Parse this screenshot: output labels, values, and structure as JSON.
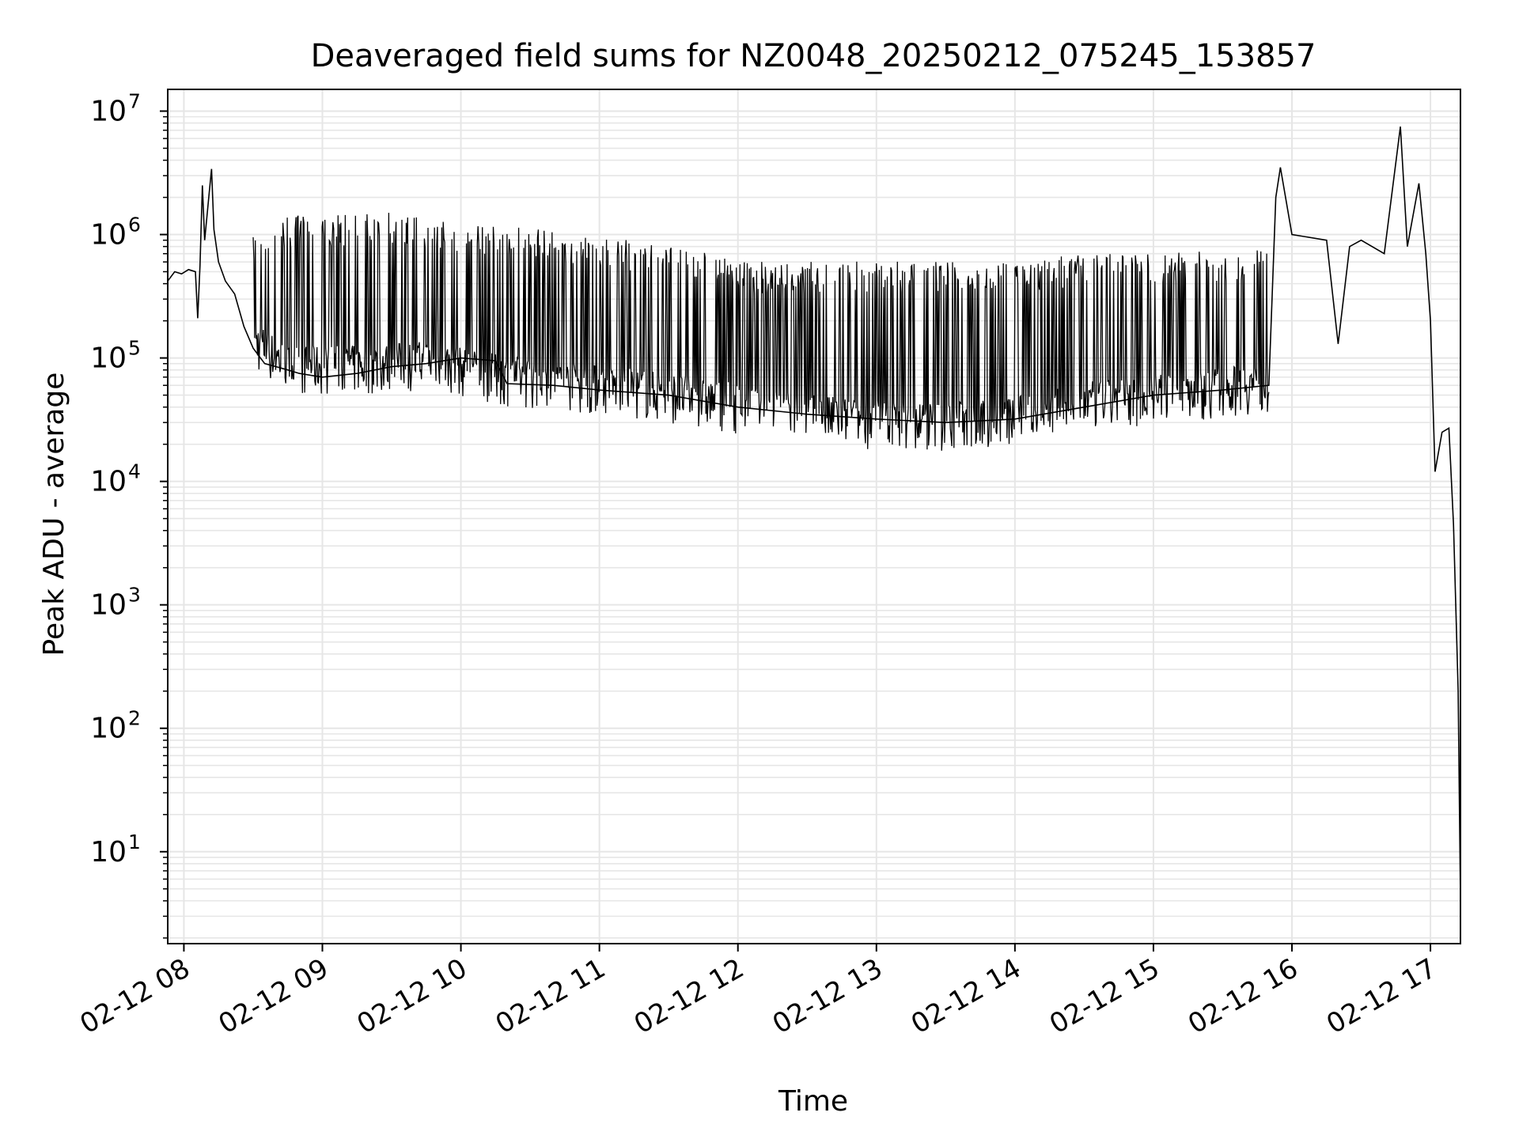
{
  "chart_data": {
    "type": "line",
    "title": "Deaveraged field sums for NZ0048_20250212_075245_153857",
    "xlabel": "Time",
    "ylabel": "Peak ADU - average",
    "yscale": "log",
    "grid": true,
    "line_color": "#000000",
    "grid_color": "#e6e6e6",
    "xlim": [
      "2025-02-12 07:53",
      "2025-02-12 17:13"
    ],
    "ylim": [
      1.8,
      15000000
    ],
    "x_ticks": [
      {
        "value": "2025-02-12 08:00",
        "label": "02-12 08"
      },
      {
        "value": "2025-02-12 09:00",
        "label": "02-12 09"
      },
      {
        "value": "2025-02-12 10:00",
        "label": "02-12 10"
      },
      {
        "value": "2025-02-12 11:00",
        "label": "02-12 11"
      },
      {
        "value": "2025-02-12 12:00",
        "label": "02-12 12"
      },
      {
        "value": "2025-02-12 13:00",
        "label": "02-12 13"
      },
      {
        "value": "2025-02-12 14:00",
        "label": "02-12 14"
      },
      {
        "value": "2025-02-12 15:00",
        "label": "02-12 15"
      },
      {
        "value": "2025-02-12 16:00",
        "label": "02-12 16"
      },
      {
        "value": "2025-02-12 17:00",
        "label": "02-12 17"
      }
    ],
    "y_ticks": [
      {
        "value": 10,
        "base": "10",
        "exp": "1"
      },
      {
        "value": 100,
        "base": "10",
        "exp": "2"
      },
      {
        "value": 1000,
        "base": "10",
        "exp": "3"
      },
      {
        "value": 10000,
        "base": "10",
        "exp": "4"
      },
      {
        "value": 100000,
        "base": "10",
        "exp": "5"
      },
      {
        "value": 1000000,
        "base": "10",
        "exp": "6"
      },
      {
        "value": 10000000,
        "base": "10",
        "exp": "7"
      }
    ],
    "envelope_note_free": true,
    "series": [
      {
        "points": [
          [
            "2025-02-12 07:53",
            420000
          ],
          [
            "2025-02-12 07:56",
            500000
          ],
          [
            "2025-02-12 07:59",
            480000
          ],
          [
            "2025-02-12 08:02",
            520000
          ],
          [
            "2025-02-12 08:05",
            500000
          ],
          [
            "2025-02-12 08:06",
            210000
          ],
          [
            "2025-02-12 08:07",
            560000
          ],
          [
            "2025-02-12 08:08",
            2500000
          ],
          [
            "2025-02-12 08:09",
            900000
          ],
          [
            "2025-02-12 08:11",
            2200000
          ],
          [
            "2025-02-12 08:12",
            3400000
          ],
          [
            "2025-02-12 08:13",
            1100000
          ],
          [
            "2025-02-12 08:15",
            600000
          ],
          [
            "2025-02-12 08:18",
            420000
          ],
          [
            "2025-02-12 08:22",
            330000
          ],
          [
            "2025-02-12 08:26",
            180000
          ],
          [
            "2025-02-12 08:30",
            120000
          ],
          [
            "2025-02-12 08:35",
            90000
          ],
          [
            "2025-02-12 08:40",
            85000
          ],
          [
            "2025-02-12 08:45",
            80000
          ],
          [
            "2025-02-12 08:50",
            75000
          ],
          [
            "2025-02-12 09:00",
            70000
          ],
          [
            "2025-02-12 09:15",
            75000
          ],
          [
            "2025-02-12 09:30",
            85000
          ],
          [
            "2025-02-12 09:45",
            90000
          ],
          [
            "2025-02-12 10:00",
            100000
          ],
          [
            "2025-02-12 10:15",
            95000
          ],
          [
            "2025-02-12 10:20",
            62000
          ],
          [
            "2025-02-12 10:40",
            60000
          ],
          [
            "2025-02-12 11:00",
            55000
          ],
          [
            "2025-02-12 11:30",
            50000
          ],
          [
            "2025-02-12 12:00",
            40000
          ],
          [
            "2025-02-12 12:30",
            35000
          ],
          [
            "2025-02-12 13:00",
            32000
          ],
          [
            "2025-02-12 13:30",
            30000
          ],
          [
            "2025-02-12 14:00",
            32000
          ],
          [
            "2025-02-12 14:30",
            40000
          ],
          [
            "2025-02-12 15:00",
            50000
          ],
          [
            "2025-02-12 15:30",
            55000
          ],
          [
            "2025-02-12 15:50",
            60000
          ],
          [
            "2025-02-12 15:53",
            2000000
          ],
          [
            "2025-02-12 15:55",
            3500000
          ],
          [
            "2025-02-12 16:00",
            1000000
          ],
          [
            "2025-02-12 16:15",
            900000
          ],
          [
            "2025-02-12 16:20",
            130000
          ],
          [
            "2025-02-12 16:25",
            800000
          ],
          [
            "2025-02-12 16:30",
            900000
          ],
          [
            "2025-02-12 16:40",
            700000
          ],
          [
            "2025-02-12 16:47",
            7500000
          ],
          [
            "2025-02-12 16:50",
            800000
          ],
          [
            "2025-02-12 16:55",
            2600000
          ],
          [
            "2025-02-12 16:58",
            700000
          ],
          [
            "2025-02-12 17:00",
            200000
          ],
          [
            "2025-02-12 17:02",
            12000
          ],
          [
            "2025-02-12 17:05",
            25000
          ],
          [
            "2025-02-12 17:08",
            27000
          ],
          [
            "2025-02-12 17:10",
            4500
          ],
          [
            "2025-02-12 17:12",
            200
          ],
          [
            "2025-02-12 17:13",
            4
          ]
        ]
      }
    ],
    "upper_envelope": [
      [
        "2025-02-12 07:53",
        600000
      ],
      [
        "2025-02-12 08:20",
        700000
      ],
      [
        "2025-02-12 08:45",
        1300000
      ],
      [
        "2025-02-12 09:30",
        1400000
      ],
      [
        "2025-02-12 10:15",
        1100000
      ],
      [
        "2025-02-12 11:00",
        900000
      ],
      [
        "2025-02-12 11:40",
        700000
      ],
      [
        "2025-02-12 12:00",
        550000
      ],
      [
        "2025-02-12 13:00",
        560000
      ],
      [
        "2025-02-12 14:00",
        580000
      ],
      [
        "2025-02-12 15:00",
        660000
      ],
      [
        "2025-02-12 15:50",
        700000
      ]
    ],
    "lower_envelope": [
      [
        "2025-02-12 08:30",
        90000
      ],
      [
        "2025-02-12 08:45",
        55000
      ],
      [
        "2025-02-12 09:15",
        55000
      ],
      [
        "2025-02-12 09:45",
        60000
      ],
      [
        "2025-02-12 10:20",
        45000
      ],
      [
        "2025-02-12 11:00",
        38000
      ],
      [
        "2025-02-12 11:30",
        33000
      ],
      [
        "2025-02-12 12:00",
        27000
      ],
      [
        "2025-02-12 12:30",
        22000
      ],
      [
        "2025-02-12 13:00",
        20000
      ],
      [
        "2025-02-12 13:30",
        19000
      ],
      [
        "2025-02-12 14:00",
        21000
      ],
      [
        "2025-02-12 14:30",
        28000
      ],
      [
        "2025-02-12 15:00",
        32000
      ],
      [
        "2025-02-12 15:50",
        40000
      ]
    ]
  }
}
